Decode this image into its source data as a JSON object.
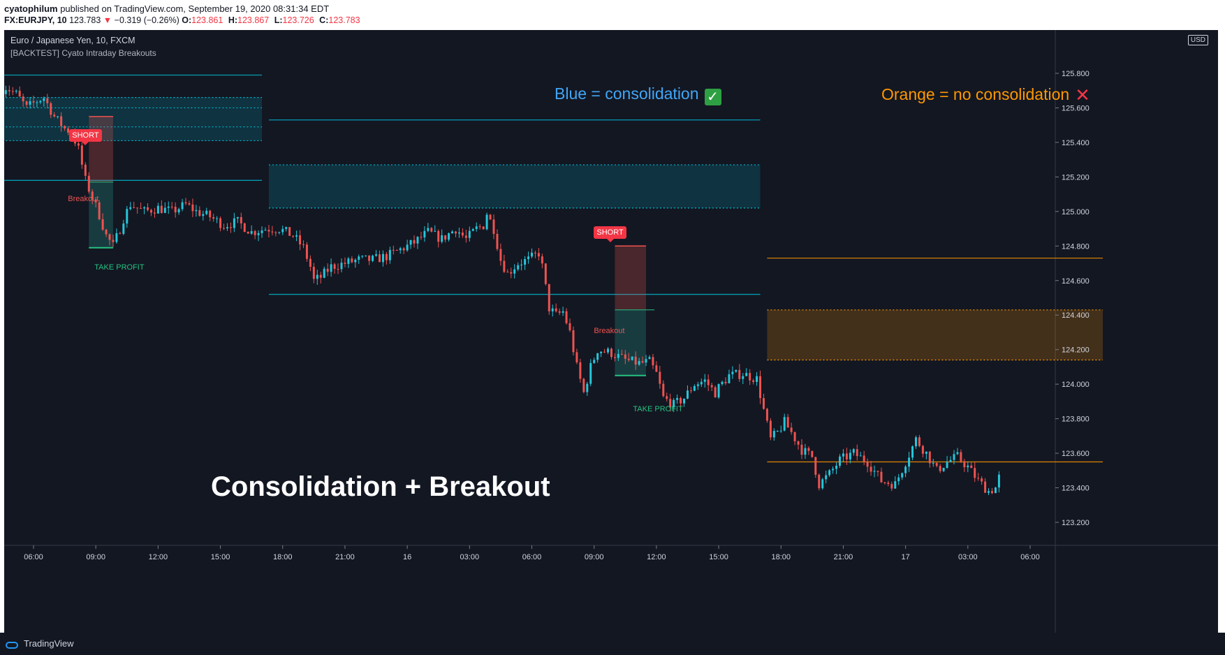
{
  "header": {
    "author": "cyatophilum",
    "published": "published on TradingView.com, September 19, 2020 08:31:34 EDT",
    "symbol": "FX:EURJPY, 10",
    "last": "123.783",
    "change": "−0.319 (−0.26%)",
    "ohlc": [
      {
        "label": "O:",
        "value": "123.861"
      },
      {
        "label": "H:",
        "value": "123.867"
      },
      {
        "label": "L:",
        "value": "123.726"
      },
      {
        "label": "C:",
        "value": "123.783"
      }
    ]
  },
  "legend": {
    "title": "Euro / Japanese Yen, 10, FXCM",
    "study": "[BACKTEST] Cyato Intraday Breakouts",
    "currency": "USD"
  },
  "annotations": {
    "blue_note": "Blue = consolidation",
    "orange_note": "Orange = no consolidation",
    "main_title": "Consolidation + Breakout",
    "short_label": "SHORT",
    "breakout_label": "Breakout",
    "tp_label": "TAKE PROFIT"
  },
  "footer": {
    "brand": "TradingView"
  },
  "colors": {
    "background": "#131722",
    "up": "#26c6da",
    "down": "#ef5350",
    "consolidation": "#00bcd4",
    "no_consolidation": "#ff9800",
    "axis_text": "#d1d4dc"
  },
  "chart_data": {
    "type": "candlestick",
    "symbol": "EURJPY",
    "timeframe": "10",
    "ylim": [
      123.05,
      126.02
    ],
    "y_ticks": [
      125.8,
      125.6,
      125.4,
      125.2,
      125.0,
      124.8,
      124.6,
      124.4,
      124.2,
      124.0,
      123.8,
      123.6,
      123.4,
      123.2
    ],
    "x_range": [
      -56,
      913
    ],
    "x_ticks": [
      {
        "label": "06:00",
        "x": 0
      },
      {
        "label": "09:00",
        "x": 18
      },
      {
        "label": "12:00",
        "x": 36
      },
      {
        "label": "15:00",
        "x": 54
      },
      {
        "label": "18:00",
        "x": 72
      },
      {
        "label": "21:00",
        "x": 90
      },
      {
        "label": "16",
        "x": 108
      },
      {
        "label": "03:00",
        "x": 126
      },
      {
        "label": "06:00",
        "x": 144
      },
      {
        "label": "09:00",
        "x": 162
      },
      {
        "label": "12:00",
        "x": 180
      },
      {
        "label": "15:00",
        "x": 198
      },
      {
        "label": "18:00",
        "x": 216
      },
      {
        "label": "21:00",
        "x": 234
      },
      {
        "label": "17",
        "x": 252
      },
      {
        "label": "03:00",
        "x": 270
      },
      {
        "label": "06:00",
        "x": 288
      }
    ],
    "sessions": [
      {
        "name": "session-1",
        "type": "consolidation",
        "x_start": -9,
        "x_end": 66,
        "range_high": 125.79,
        "range_low": 125.18,
        "box_top": 125.66,
        "box_bottom": 125.41,
        "inner_high": 125.6,
        "inner_low": 125.49
      },
      {
        "name": "session-2",
        "type": "consolidation",
        "x_start": 68,
        "x_end": 210,
        "range_high": 125.53,
        "range_low": 124.52,
        "box_top": 125.27,
        "box_bottom": 125.02
      },
      {
        "name": "session-3",
        "type": "no_consolidation",
        "x_start": 212,
        "x_end": 309,
        "range_high": 124.73,
        "range_low": 123.55,
        "box_top": 124.43,
        "box_bottom": 124.14
      }
    ],
    "trades": [
      {
        "side": "SHORT",
        "x_start": 16,
        "x_end": 23,
        "entry": 125.17,
        "stop": 125.55,
        "target": 124.79
      },
      {
        "side": "SHORT",
        "x_start": 168,
        "x_end": 177,
        "entry": 124.43,
        "stop": 124.8,
        "target": 124.05
      }
    ],
    "anchors": [
      [
        -9,
        125.7
      ],
      [
        -7,
        125.72
      ],
      [
        -4,
        125.68
      ],
      [
        -1,
        125.6
      ],
      [
        2,
        125.64
      ],
      [
        4,
        125.66
      ],
      [
        7,
        125.55
      ],
      [
        10,
        125.48
      ],
      [
        12,
        125.46
      ],
      [
        14,
        125.36
      ],
      [
        16,
        125.18
      ],
      [
        18,
        125.08
      ],
      [
        20,
        124.98
      ],
      [
        22,
        124.86
      ],
      [
        24,
        124.8
      ],
      [
        26,
        124.9
      ],
      [
        27,
        124.96
      ],
      [
        29,
        125.04
      ],
      [
        33,
        125.0
      ],
      [
        37,
        125.02
      ],
      [
        41,
        125.0
      ],
      [
        45,
        125.04
      ],
      [
        48,
        125.0
      ],
      [
        52,
        124.97
      ],
      [
        56,
        124.92
      ],
      [
        60,
        124.94
      ],
      [
        64,
        124.88
      ],
      [
        68,
        124.9
      ],
      [
        72,
        124.9
      ],
      [
        76,
        124.86
      ],
      [
        79,
        124.79
      ],
      [
        81,
        124.68
      ],
      [
        82,
        124.6
      ],
      [
        84,
        124.62
      ],
      [
        87,
        124.68
      ],
      [
        91,
        124.7
      ],
      [
        95,
        124.72
      ],
      [
        99,
        124.72
      ],
      [
        103,
        124.74
      ],
      [
        107,
        124.78
      ],
      [
        111,
        124.82
      ],
      [
        115,
        124.88
      ],
      [
        119,
        124.84
      ],
      [
        123,
        124.9
      ],
      [
        126,
        124.84
      ],
      [
        129,
        124.9
      ],
      [
        131,
        124.92
      ],
      [
        132,
        124.99
      ],
      [
        134,
        124.9
      ],
      [
        136,
        124.72
      ],
      [
        138,
        124.64
      ],
      [
        141,
        124.7
      ],
      [
        144,
        124.72
      ],
      [
        147,
        124.76
      ],
      [
        148,
        124.68
      ],
      [
        150,
        124.44
      ],
      [
        152,
        124.4
      ],
      [
        154,
        124.42
      ],
      [
        156,
        124.3
      ],
      [
        158,
        124.1
      ],
      [
        160,
        123.95
      ],
      [
        162,
        124.1
      ],
      [
        164,
        124.2
      ],
      [
        168,
        124.18
      ],
      [
        172,
        124.14
      ],
      [
        176,
        124.12
      ],
      [
        179,
        124.13
      ],
      [
        181,
        124.06
      ],
      [
        183,
        123.92
      ],
      [
        186,
        123.88
      ],
      [
        189,
        123.92
      ],
      [
        192,
        124.0
      ],
      [
        195,
        124.02
      ],
      [
        198,
        123.95
      ],
      [
        199,
        123.98
      ],
      [
        202,
        124.05
      ],
      [
        206,
        124.06
      ],
      [
        210,
        124.03
      ],
      [
        212,
        123.85
      ],
      [
        214,
        123.68
      ],
      [
        216,
        123.72
      ],
      [
        218,
        123.78
      ],
      [
        220,
        123.72
      ],
      [
        223,
        123.62
      ],
      [
        226,
        123.58
      ],
      [
        228,
        123.42
      ],
      [
        231,
        123.48
      ],
      [
        234,
        123.56
      ],
      [
        238,
        123.6
      ],
      [
        242,
        123.55
      ],
      [
        246,
        123.44
      ],
      [
        250,
        123.42
      ],
      [
        253,
        123.55
      ],
      [
        256,
        123.68
      ],
      [
        259,
        123.6
      ],
      [
        262,
        123.5
      ],
      [
        265,
        123.55
      ],
      [
        268,
        123.58
      ],
      [
        271,
        123.52
      ],
      [
        274,
        123.44
      ],
      [
        277,
        123.38
      ],
      [
        279,
        123.4
      ],
      [
        280,
        123.46
      ]
    ]
  }
}
